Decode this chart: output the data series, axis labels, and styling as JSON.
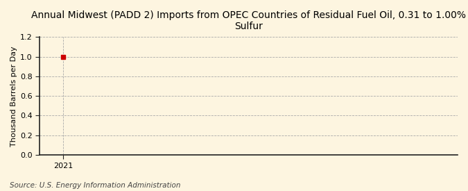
{
  "title": "Annual Midwest (PADD 2) Imports from OPEC Countries of Residual Fuel Oil, 0.31 to 1.00%\nSulfur",
  "ylabel": "Thousand Barrels per Day",
  "source": "Source: U.S. Energy Information Administration",
  "x_data": [
    2021
  ],
  "y_data": [
    1.0
  ],
  "marker_color": "#cc0000",
  "marker_style": "s",
  "marker_size": 4,
  "xlim": [
    2020.5,
    2029.5
  ],
  "ylim": [
    0.0,
    1.2
  ],
  "yticks": [
    0.0,
    0.2,
    0.4,
    0.6,
    0.8,
    1.0,
    1.2
  ],
  "xticks": [
    2021
  ],
  "background_color": "#fdf5e0",
  "grid_color": "#aaaaaa",
  "grid_linestyle": "--",
  "grid_linewidth": 0.6,
  "title_fontsize": 10,
  "ylabel_fontsize": 8,
  "source_fontsize": 7.5,
  "tick_fontsize": 8,
  "spine_color": "#222222"
}
